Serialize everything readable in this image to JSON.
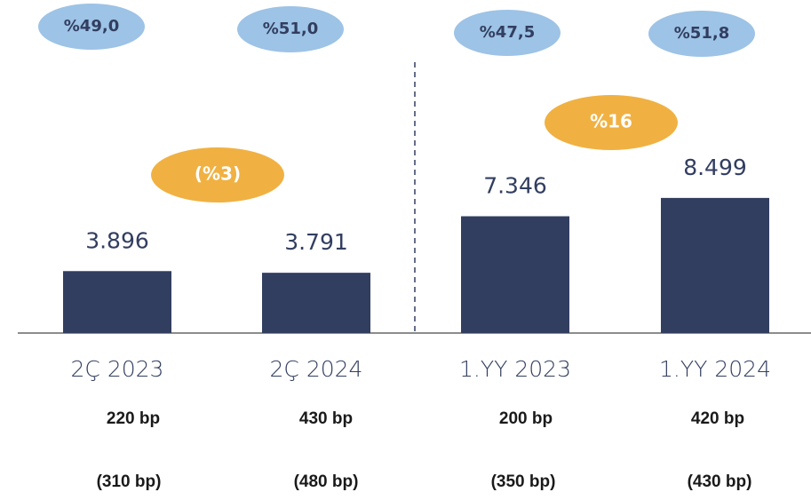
{
  "chart_data": {
    "type": "bar",
    "categories": [
      "2Ç 2023",
      "2Ç 2024",
      "1.YY 2023",
      "1.YY 2024"
    ],
    "values": [
      3896,
      3791,
      7346,
      8499
    ],
    "value_labels": [
      "3.896",
      "3.791",
      "7.346",
      "8.499"
    ],
    "color": "#323e60",
    "ratio_labels": [
      "%49,0",
      "%51,0",
      "%47,5",
      "%51,8"
    ],
    "growth_labels": [
      "(%3)",
      "%16"
    ],
    "bp_labels": [
      "220 bp",
      "430 bp",
      "200 bp",
      "420 bp"
    ],
    "bp_labels_2": [
      "(310 bp)",
      "(480 bp)",
      "(350 bp)",
      "(430 bp)"
    ]
  }
}
